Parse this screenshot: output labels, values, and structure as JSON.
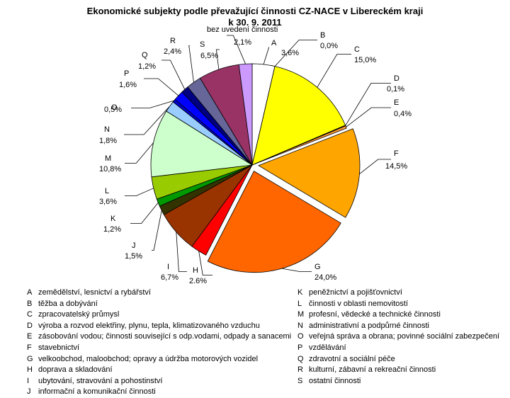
{
  "chart_data": {
    "type": "pie",
    "title_line1": "Ekonomické subjekty podle převažující činnosti CZ-NACE v Libereckém kraji",
    "title_line2": "k 30. 9. 2011",
    "slices": [
      {
        "code": "A",
        "label": "A",
        "value": 3.6,
        "value_label": "3,6%",
        "color": "#ffffff"
      },
      {
        "code": "B",
        "label": "B",
        "value": 0.0,
        "value_label": "0,0%",
        "color": "#000000"
      },
      {
        "code": "C",
        "label": "C",
        "value": 15.0,
        "value_label": "15,0%",
        "color": "#ffff00"
      },
      {
        "code": "D",
        "label": "D",
        "value": 0.1,
        "value_label": "0,1%",
        "color": "#c0c0c0"
      },
      {
        "code": "E",
        "label": "E",
        "value": 0.4,
        "value_label": "0,4%",
        "color": "#ff9933"
      },
      {
        "code": "F",
        "label": "F",
        "value": 14.5,
        "value_label": "14,5%",
        "color": "#ffa500"
      },
      {
        "code": "G",
        "label": "G",
        "value": 24.0,
        "value_label": "24,0%",
        "color": "#ff6600"
      },
      {
        "code": "H",
        "label": "H",
        "value": 2.6,
        "value_label": "2,6%",
        "color": "#ff0000"
      },
      {
        "code": "I",
        "label": "I",
        "value": 6.7,
        "value_label": "6,7%",
        "color": "#993300"
      },
      {
        "code": "J",
        "label": "J",
        "value": 1.5,
        "value_label": "1,5%",
        "color": "#333300"
      },
      {
        "code": "K",
        "label": "K",
        "value": 1.2,
        "value_label": "1,2%",
        "color": "#009900"
      },
      {
        "code": "L",
        "label": "L",
        "value": 3.6,
        "value_label": "3,6%",
        "color": "#99cc00"
      },
      {
        "code": "M",
        "label": "M",
        "value": 10.8,
        "value_label": "10,8%",
        "color": "#ccffcc"
      },
      {
        "code": "N",
        "label": "N",
        "value": 1.8,
        "value_label": "1,8%",
        "color": "#99ccff"
      },
      {
        "code": "O",
        "label": "O",
        "value": 0.5,
        "value_label": "0,5%",
        "color": "#0000cc"
      },
      {
        "code": "P",
        "label": "P",
        "value": 1.6,
        "value_label": "1,6%",
        "color": "#0000ff"
      },
      {
        "code": "Q",
        "label": "Q",
        "value": 1.2,
        "value_label": "1,2%",
        "color": "#000080"
      },
      {
        "code": "R",
        "label": "R",
        "value": 2.4,
        "value_label": "2,4%",
        "color": "#666699"
      },
      {
        "code": "S",
        "label": "S",
        "value": 6.5,
        "value_label": "6,5%",
        "color": "#993366"
      },
      {
        "code": "Z",
        "label": "bez uvedení činnosti",
        "value": 2.1,
        "value_label": "2,1%",
        "color": "#cc99ff"
      }
    ],
    "legend_left": [
      {
        "code": "A",
        "text": "zemědělství, lesnictví a rybářství"
      },
      {
        "code": "B",
        "text": "těžba a dobývání"
      },
      {
        "code": "C",
        "text": "zpracovatelský průmysl"
      },
      {
        "code": "D",
        "text": "výroba a rozvod elektřiny, plynu, tepla, klimatizovaného vzduchu"
      },
      {
        "code": "E",
        "text": "zásobování vodou; činnosti související s odp.vodami, odpady a sanacemi"
      },
      {
        "code": "F",
        "text": "stavebnictví"
      },
      {
        "code": "G",
        "text": "velkoobchod, maloobchod; opravy a údržba motorových vozidel"
      },
      {
        "code": "H",
        "text": "doprava a skladování"
      },
      {
        "code": "I",
        "text": "ubytování, stravování a pohostinství"
      },
      {
        "code": "J",
        "text": "informační a komunikační činnosti"
      }
    ],
    "legend_right": [
      {
        "code": "K",
        "text": "peněžnictví a pojišťovnictví"
      },
      {
        "code": "L",
        "text": "činnosti v oblasti nemovitostí"
      },
      {
        "code": "M",
        "text": "profesní, vědecké a technické činnosti"
      },
      {
        "code": "N",
        "text": "administrativní a podpůrné činnosti"
      },
      {
        "code": "O",
        "text": "veřejná správa a obrana; povinné sociální zabezpečení"
      },
      {
        "code": "P",
        "text": "vzdělávání"
      },
      {
        "code": "Q",
        "text": "zdravotní a sociální péče"
      },
      {
        "code": "R",
        "text": "kulturní, zábavní a rekreační činnosti"
      },
      {
        "code": "S",
        "text": "ostatní činnosti"
      }
    ]
  }
}
